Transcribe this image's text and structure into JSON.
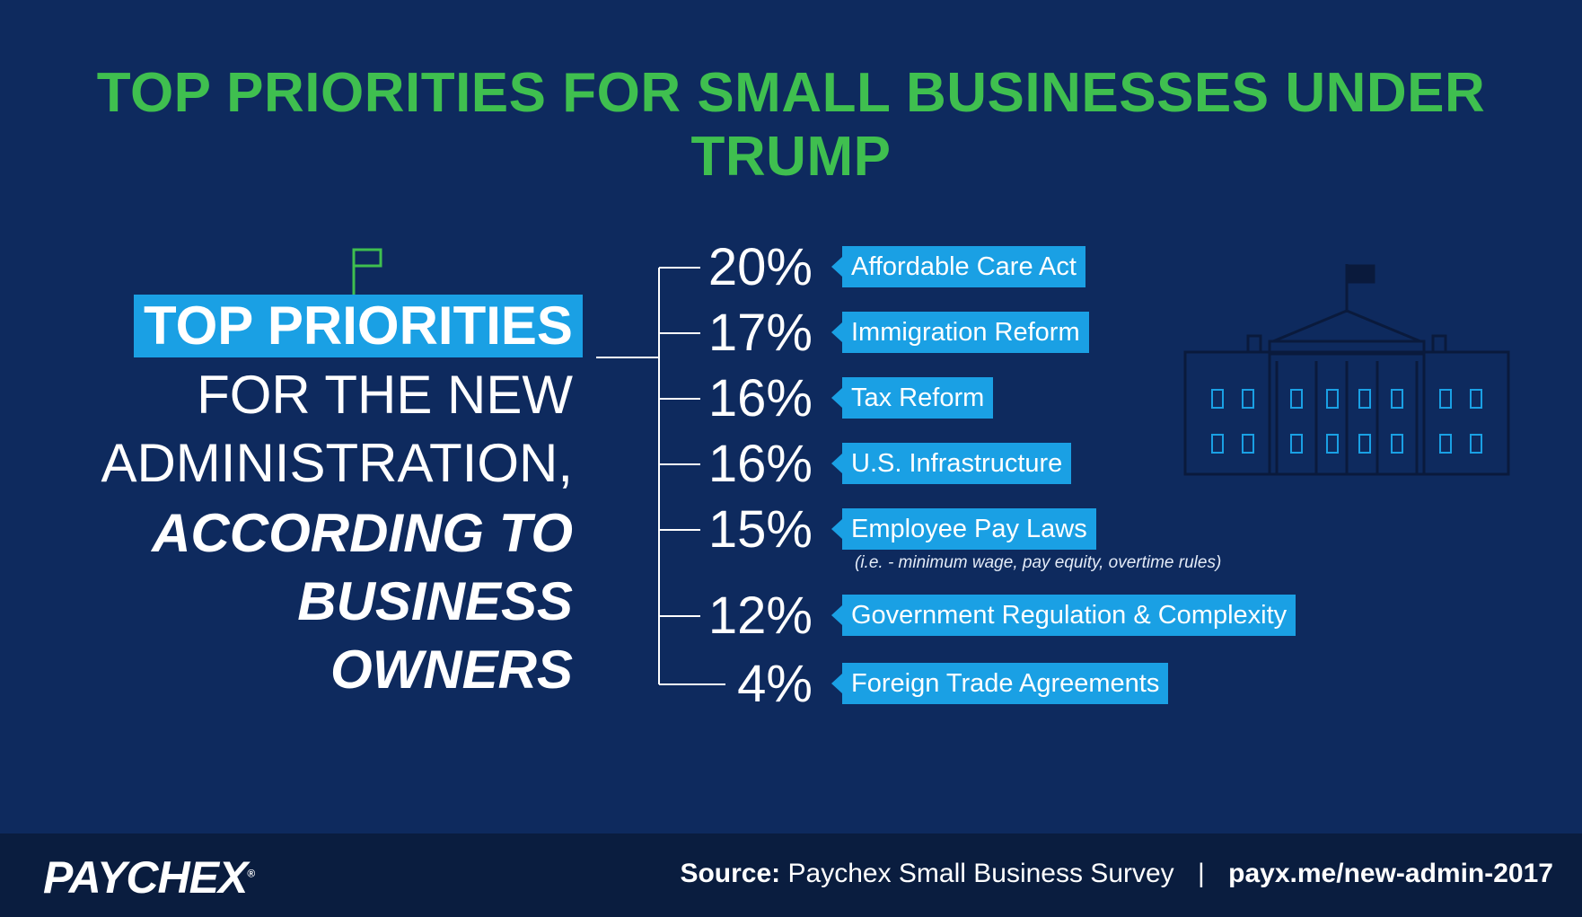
{
  "title": "TOP PRIORITIES FOR SMALL BUSINESSES UNDER TRUMP",
  "headline": {
    "highlight": "TOP PRIORITIES",
    "line2": "FOR THE NEW",
    "line3": "ADMINISTRATION,",
    "line4": "ACCORDING TO",
    "line5": "BUSINESS",
    "line6": "OWNERS"
  },
  "priorities": [
    {
      "percent": "20%",
      "value": 20,
      "label": "Affordable Care Act"
    },
    {
      "percent": "17%",
      "value": 17,
      "label": "Immigration Reform"
    },
    {
      "percent": "16%",
      "value": 16,
      "label": "Tax Reform"
    },
    {
      "percent": "16%",
      "value": 16,
      "label": "U.S. Infrastructure"
    },
    {
      "percent": "15%",
      "value": 15,
      "label": "Employee Pay Laws"
    },
    {
      "percent": "12%",
      "value": 12,
      "label": "Government Regulation & Complexity"
    },
    {
      "percent": "4%",
      "value": 4,
      "label": "Foreign Trade Agreements"
    }
  ],
  "note": "(i.e. - minimum wage, pay equity, overtime rules)",
  "footer": {
    "logo": "PAYCHEX",
    "logo_mark": "®",
    "source_label": "Source:",
    "source_text": "Paychex Small Business Survey",
    "separator": "|",
    "url": "payx.me/new-admin-2017"
  },
  "colors": {
    "background": "#0e2a5e",
    "accent_green": "#3fbf4f",
    "accent_blue": "#1aa0e4",
    "footer": "#0a1d3f"
  },
  "icons": [
    "flag-icon",
    "white-house-icon"
  ]
}
